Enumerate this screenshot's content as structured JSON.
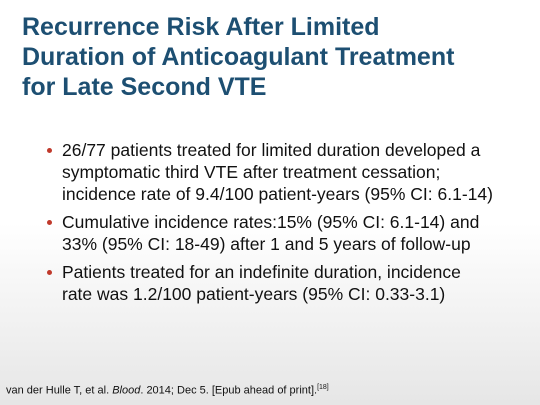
{
  "header": {
    "title_lines": [
      "Recurrence Risk After Limited",
      "Duration of Anticoagulant Treatment",
      "for Late Second VTE"
    ]
  },
  "bullets": [
    {
      "lines": [
        "26/77 patients treated for limited duration developed a",
        "symptomatic third VTE after treatment cessation;",
        "incidence rate of 9.4/100 patient-years (95% CI: 6.1-14)"
      ]
    },
    {
      "lines": [
        "Cumulative incidence rates:15% (95% CI: 6.1-14) and",
        "33% (95% CI: 18-49) after 1 and 5 years of follow-up"
      ]
    },
    {
      "lines": [
        "Patients treated for an indefinite duration, incidence",
        "rate was 1.2/100 patient-years (95% CI: 0.33-3.1)"
      ]
    }
  ],
  "citation": {
    "before": "van der Hulle T, et al. ",
    "journal": "Blood",
    "after": ". 2014; Dec 5. [Epub ahead of print].",
    "ref": "[18]"
  }
}
